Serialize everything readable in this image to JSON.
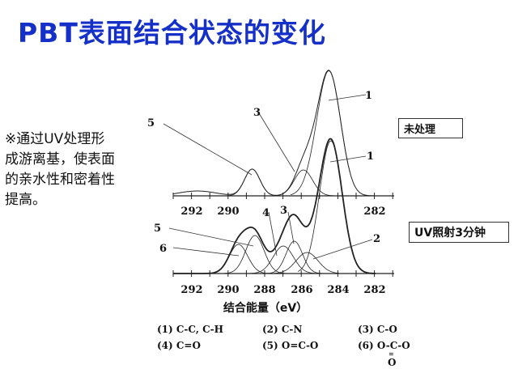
{
  "title": "PBT表面结合状态的变化",
  "description": [
    "※通过UV处理形",
    "成游离基，使表面",
    "的亲水性和密着性",
    "提高。"
  ],
  "spectra": [
    {
      "label": "未处理",
      "peak_labels": [
        "1",
        "1",
        "3",
        "5"
      ],
      "axis_ticks": [
        "292",
        "290",
        "282"
      ]
    },
    {
      "label": "UV照射3分钟",
      "peak_labels": [
        "2",
        "3",
        "4",
        "5",
        "6"
      ],
      "axis_ticks": [
        "292",
        "290",
        "288",
        "286",
        "284",
        "282"
      ]
    }
  ],
  "xlabel": "结合能量（eV）",
  "legend": [
    {
      "text": "(1) C-C, C-H"
    },
    {
      "text": "(2) C-N"
    },
    {
      "text": "(3) C-O"
    },
    {
      "text": "(4) C=O"
    },
    {
      "text": "(5) O=C-O"
    },
    {
      "text": "(6) O-C-O"
    }
  ],
  "legend_sub": "O",
  "legend_eq": "="
}
